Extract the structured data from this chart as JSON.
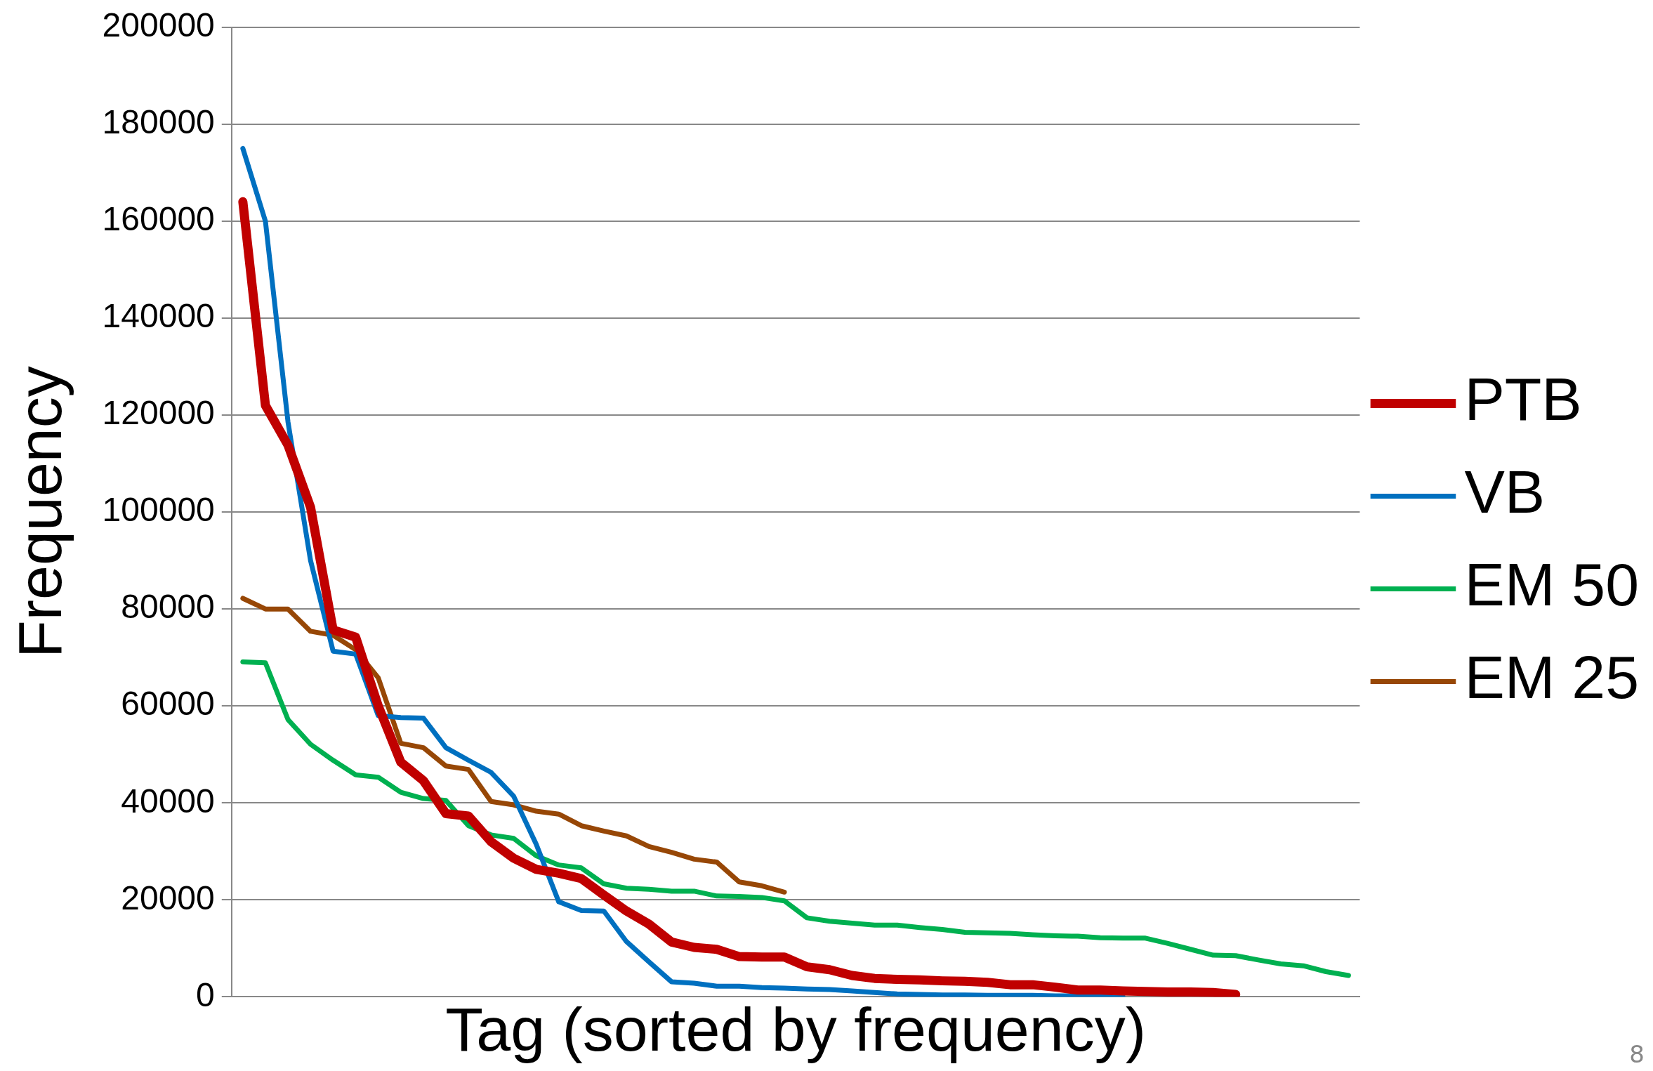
{
  "chart_data": {
    "type": "line",
    "xlabel": "Tag (sorted by frequency)",
    "ylabel": "Frequency",
    "categories": [
      null,
      null,
      null,
      null,
      null,
      null,
      null,
      null,
      null,
      null,
      null,
      null,
      null,
      null,
      null,
      null,
      null,
      null,
      null,
      null,
      null,
      null,
      null,
      null,
      null,
      null,
      null,
      null,
      null,
      null,
      null,
      null,
      null,
      null,
      null,
      null,
      null,
      null,
      null,
      null,
      null,
      null,
      null,
      null,
      null,
      null,
      null,
      null,
      null,
      null
    ],
    "series": [
      {
        "name": "PTB",
        "color": "#c00000",
        "values": [
          164000,
          122000,
          113800,
          101000,
          75700,
          74200,
          60000,
          48400,
          44600,
          37800,
          37300,
          32000,
          28600,
          26300,
          25500,
          24400,
          21000,
          17700,
          15000,
          11300,
          10200,
          9800,
          8300,
          8200,
          8200,
          6200,
          5600,
          4400,
          3800,
          3600,
          3500,
          3300,
          3200,
          3000,
          2500,
          2500,
          2000,
          1400,
          1400,
          1200,
          1100,
          1000,
          1000,
          900,
          500,
          null,
          null,
          null,
          null,
          null
        ]
      },
      {
        "name": "VB",
        "color": "#0070c0",
        "values": [
          175000,
          160000,
          118600,
          90000,
          71300,
          70700,
          58000,
          57600,
          57500,
          51400,
          48800,
          46300,
          41400,
          31500,
          19600,
          17800,
          17700,
          11400,
          7200,
          3100,
          2800,
          2200,
          2200,
          1900,
          1800,
          1600,
          1500,
          1200,
          900,
          600,
          500,
          400,
          400,
          300,
          300,
          300,
          200,
          200,
          200,
          100,
          null,
          null,
          null,
          null,
          null,
          null,
          null,
          null,
          null,
          null
        ]
      },
      {
        "name": "EM 50",
        "color": "#00b050",
        "values": [
          69100,
          68900,
          57200,
          52100,
          48800,
          45800,
          45300,
          42200,
          40900,
          40500,
          35300,
          33400,
          32700,
          29100,
          27200,
          26600,
          23300,
          22400,
          22200,
          21800,
          21800,
          20800,
          20700,
          20500,
          19800,
          16300,
          15600,
          15200,
          14800,
          14800,
          14300,
          13900,
          13300,
          13200,
          13100,
          12800,
          12600,
          12500,
          12200,
          12100,
          12100,
          11000,
          9800,
          8600,
          8500,
          7600,
          6800,
          6400,
          5200,
          4400
        ]
      },
      {
        "name": "EM 25",
        "color": "#974706",
        "values": [
          82200,
          80000,
          80000,
          75400,
          74600,
          71600,
          65800,
          52300,
          51400,
          47600,
          46900,
          40300,
          39600,
          38300,
          37700,
          35300,
          34200,
          33200,
          31000,
          29800,
          28400,
          27800,
          23700,
          22900,
          21600,
          null,
          null,
          null,
          null,
          null,
          null,
          null,
          null,
          null,
          null,
          null,
          null,
          null,
          null,
          null,
          null,
          null,
          null,
          null,
          null,
          null,
          null,
          null,
          null,
          null
        ]
      }
    ],
    "ylim": [
      0,
      200000
    ],
    "yticks": [
      0,
      20000,
      40000,
      60000,
      80000,
      100000,
      120000,
      140000,
      160000,
      180000,
      200000
    ],
    "grid": "y",
    "legend": "right",
    "tick_labels": "y",
    "marker": "none",
    "line_style": "solid",
    "annotations": [
      "8"
    ]
  }
}
